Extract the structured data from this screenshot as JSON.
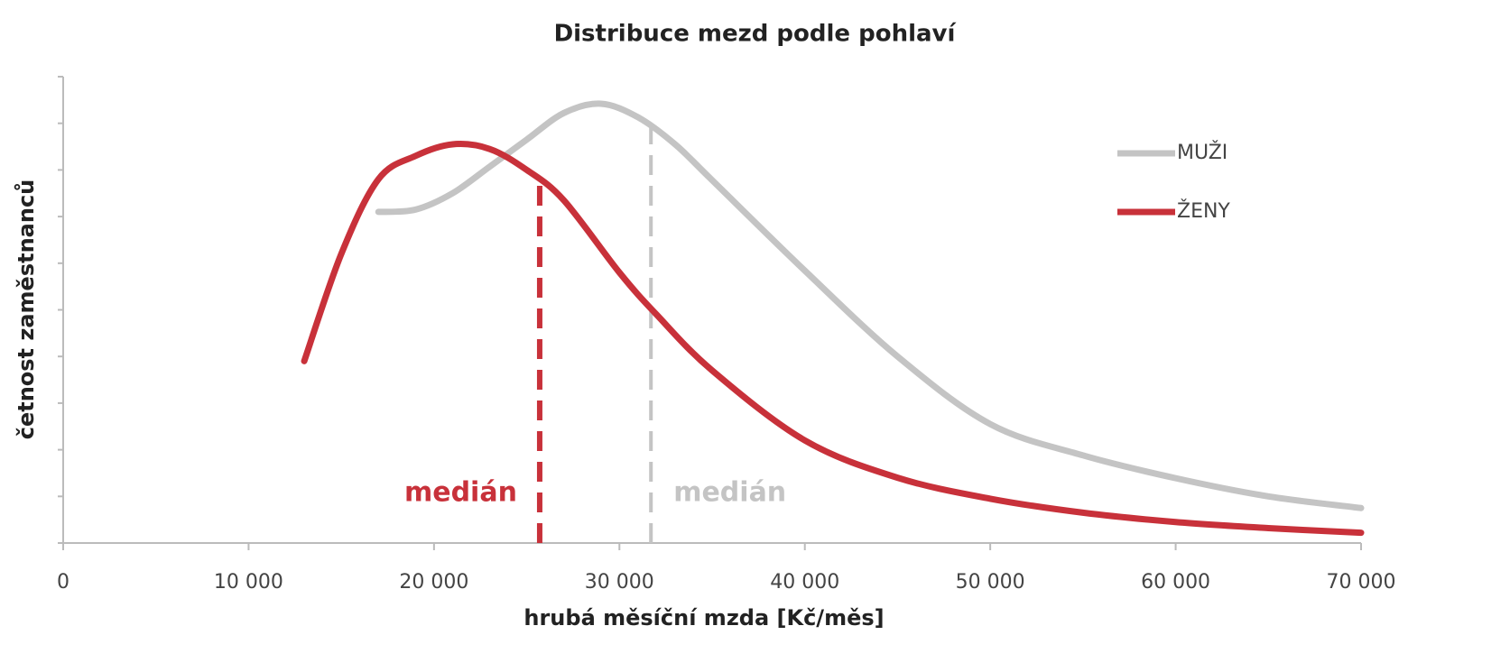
{
  "chart_data": {
    "type": "line",
    "title": "Distribuce mezd podle pohlaví",
    "xlabel": "hrubá měsíční mzda [Kč/měs]",
    "ylabel": "četnost zaměstnanců",
    "xlim": [
      0,
      70000
    ],
    "xticks": [
      0,
      {
        "value": 10000,
        "label": "10 000"
      },
      {
        "value": 20000,
        "label": "20 000"
      },
      {
        "value": 30000,
        "label": "30 000"
      },
      {
        "value": 40000,
        "label": "40 000"
      },
      {
        "value": 50000,
        "label": "50 000"
      },
      {
        "value": 60000,
        "label": "60 000"
      },
      {
        "value": 70000,
        "label": "70 000"
      }
    ],
    "ylim": [
      0,
      10
    ],
    "yticks": [
      0,
      1,
      2,
      3,
      4,
      5,
      6,
      7,
      8,
      9,
      10
    ],
    "legend": "upper right",
    "series": [
      {
        "name": "MUŽI",
        "color": "#c4c4c4",
        "x": [
          17000,
          19000,
          21000,
          23000,
          25000,
          27000,
          29000,
          31000,
          33000,
          35000,
          40000,
          45000,
          50000,
          55000,
          60000,
          65000,
          70000
        ],
        "values": [
          7.1,
          7.15,
          7.5,
          8.07,
          8.65,
          9.22,
          9.42,
          9.13,
          8.55,
          7.78,
          5.84,
          4.0,
          2.55,
          1.88,
          1.39,
          1.0,
          0.75
        ],
        "median": 31700,
        "median_label": "medián"
      },
      {
        "name": "ŽENY",
        "color": "#c8313a",
        "x": [
          13000,
          15000,
          17000,
          19000,
          21000,
          23000,
          25000,
          27000,
          30000,
          32000,
          35000,
          40000,
          45000,
          50000,
          55000,
          60000,
          65000,
          70000
        ],
        "values": [
          3.9,
          6.2,
          7.8,
          8.3,
          8.55,
          8.45,
          8.0,
          7.35,
          5.8,
          4.9,
          3.7,
          2.2,
          1.4,
          0.95,
          0.65,
          0.45,
          0.32,
          0.22
        ],
        "median": 25700,
        "median_label": "medián"
      }
    ]
  }
}
